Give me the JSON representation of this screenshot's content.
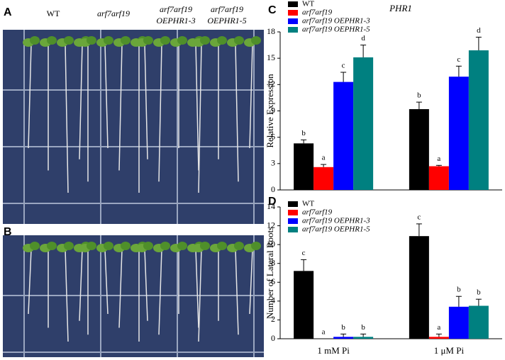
{
  "panel_labels": [
    "A",
    "B",
    "C",
    "D"
  ],
  "photo_labels": [
    [
      "WT"
    ],
    [
      "arf7arf19"
    ],
    [
      "arf7arf19",
      "OEPHR1-3"
    ],
    [
      "arf7arf19",
      "OEPHR1-5"
    ]
  ],
  "chart_data": [
    {
      "type": "bar",
      "title": "PHR1",
      "y_label": "Relative Expression",
      "categories": [
        null,
        null
      ],
      "ylim": [
        0,
        18
      ],
      "yticks": [
        0,
        3,
        6,
        9,
        12,
        15,
        18
      ],
      "series": [
        {
          "name": "WT",
          "color": "#000000",
          "values": [
            5.3,
            9.2
          ],
          "errors": [
            0.4,
            0.8
          ],
          "letters": [
            "b",
            "b"
          ]
        },
        {
          "name": "arf7arf19",
          "color": "#ff0000",
          "values": [
            2.6,
            2.7
          ],
          "errors": [
            0.3,
            0.1
          ],
          "letters": [
            "a",
            "a"
          ]
        },
        {
          "name": "arf7arf19 OEPHR1-3",
          "color": "#0000ff",
          "values": [
            12.3,
            12.9
          ],
          "errors": [
            1.1,
            1.2
          ],
          "letters": [
            "c",
            "c"
          ]
        },
        {
          "name": "arf7arf19 OEPHR1-5",
          "color": "#008080",
          "values": [
            15.1,
            15.9
          ],
          "errors": [
            1.4,
            1.5
          ],
          "letters": [
            "d",
            "d"
          ]
        }
      ]
    },
    {
      "type": "bar",
      "y_label": "Number of Lateral Roots",
      "categories": [
        "1 mM Pi",
        "1 μM Pi"
      ],
      "ylim": [
        0,
        14
      ],
      "yticks": [
        0,
        2,
        4,
        6,
        8,
        10,
        12,
        14
      ],
      "series": [
        {
          "name": "WT",
          "color": "#000000",
          "values": [
            7.2,
            10.9
          ],
          "errors": [
            1.2,
            1.3
          ],
          "letters": [
            "c",
            "c"
          ]
        },
        {
          "name": "arf7arf19",
          "color": "#ff0000",
          "values": [
            0,
            0.2
          ],
          "errors": [
            0,
            0.3
          ],
          "letters": [
            "a",
            "a"
          ]
        },
        {
          "name": "arf7arf19 OEPHR1-3",
          "color": "#0000ff",
          "values": [
            0.2,
            3.4
          ],
          "errors": [
            0.3,
            1.1
          ],
          "letters": [
            "b",
            "b"
          ]
        },
        {
          "name": "arf7arf19 OEPHR1-5",
          "color": "#008080",
          "values": [
            0.2,
            3.5
          ],
          "errors": [
            0.3,
            0.7
          ],
          "letters": [
            "b",
            "b"
          ]
        }
      ]
    }
  ]
}
